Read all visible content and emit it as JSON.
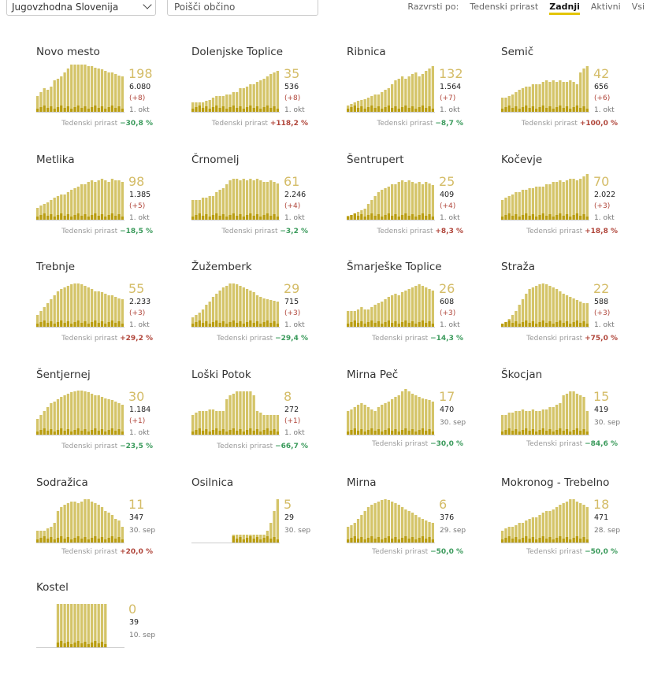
{
  "controls": {
    "region": "Jugovzhodna Slovenija",
    "search_placeholder": "Poišči občino",
    "sort_label": "Razvrsti po:",
    "sort_options": [
      "Tedenski prirast",
      "Zadnji",
      "Aktivni",
      "Vsi"
    ],
    "sort_active": "Zadnji"
  },
  "growth_label": "Tedenski prirast",
  "colors": {
    "bar": "#d4c468",
    "bar_dark": "#b99d10",
    "growth_pos": "#b0453a",
    "growth_neg": "#3a9a5b",
    "accent": "#e3c400"
  },
  "municipalities": [
    {
      "name": "Novo mesto",
      "active": "198",
      "total": "6.080",
      "delta": "(+8)",
      "date": "1. okt",
      "growth": "−30,8 %",
      "trend": "neg",
      "bars": [
        20,
        25,
        30,
        28,
        32,
        40,
        42,
        45,
        50,
        55,
        60,
        62,
        62,
        60,
        60,
        58,
        58,
        56,
        55,
        54,
        52,
        50,
        50,
        48,
        46,
        45
      ]
    },
    {
      "name": "Dolenjske Toplice",
      "active": "35",
      "total": "536",
      "delta": "(+8)",
      "date": "1. okt",
      "growth": "+118,2 %",
      "trend": "pos",
      "bars": [
        12,
        12,
        12,
        12,
        14,
        15,
        18,
        20,
        20,
        20,
        22,
        22,
        25,
        25,
        30,
        30,
        32,
        35,
        35,
        38,
        40,
        42,
        45,
        48,
        50,
        52
      ]
    },
    {
      "name": "Ribnica",
      "active": "132",
      "total": "1.564",
      "delta": "(+7)",
      "date": "1. okt",
      "growth": "−8,7 %",
      "trend": "neg",
      "bars": [
        8,
        10,
        12,
        14,
        15,
        16,
        18,
        20,
        22,
        22,
        25,
        28,
        30,
        35,
        40,
        42,
        45,
        42,
        45,
        48,
        50,
        45,
        48,
        52,
        55,
        58
      ]
    },
    {
      "name": "Semič",
      "active": "42",
      "total": "656",
      "delta": "(+6)",
      "date": "1. okt",
      "growth": "+100,0 %",
      "trend": "pos",
      "bars": [
        18,
        18,
        20,
        22,
        25,
        28,
        30,
        32,
        32,
        35,
        35,
        35,
        38,
        40,
        38,
        40,
        38,
        40,
        38,
        38,
        40,
        38,
        35,
        50,
        55,
        58
      ]
    },
    {
      "name": "Metlika",
      "active": "98",
      "total": "1.385",
      "delta": "(+5)",
      "date": "1. okt",
      "growth": "−18,5 %",
      "trend": "neg",
      "bars": [
        15,
        18,
        20,
        22,
        25,
        28,
        30,
        32,
        32,
        35,
        38,
        40,
        42,
        45,
        45,
        48,
        50,
        48,
        50,
        52,
        50,
        48,
        52,
        50,
        50,
        48
      ]
    },
    {
      "name": "Črnomelj",
      "active": "61",
      "total": "2.246",
      "delta": "(+4)",
      "date": "1. okt",
      "growth": "−3,2 %",
      "trend": "neg",
      "bars": [
        25,
        25,
        25,
        28,
        28,
        30,
        30,
        35,
        38,
        40,
        45,
        50,
        52,
        52,
        50,
        52,
        50,
        52,
        50,
        52,
        50,
        48,
        48,
        50,
        48,
        46
      ]
    },
    {
      "name": "Šentrupert",
      "active": "25",
      "total": "409",
      "delta": "(+4)",
      "date": "1. okt",
      "growth": "+8,3 %",
      "trend": "pos",
      "bars": [
        5,
        6,
        8,
        10,
        12,
        14,
        20,
        25,
        30,
        35,
        38,
        40,
        42,
        45,
        45,
        48,
        50,
        48,
        50,
        48,
        46,
        48,
        45,
        48,
        46,
        44
      ]
    },
    {
      "name": "Kočevje",
      "active": "70",
      "total": "2.022",
      "delta": "(+3)",
      "date": "1. okt",
      "growth": "+18,8 %",
      "trend": "pos",
      "bars": [
        25,
        28,
        30,
        32,
        35,
        35,
        38,
        38,
        40,
        40,
        42,
        42,
        42,
        45,
        45,
        48,
        48,
        50,
        48,
        50,
        52,
        52,
        50,
        52,
        55,
        58
      ]
    },
    {
      "name": "Trebnje",
      "active": "55",
      "total": "2.233",
      "delta": "(+3)",
      "date": "1. okt",
      "growth": "+29,2 %",
      "trend": "pos",
      "bars": [
        15,
        20,
        25,
        30,
        35,
        40,
        45,
        48,
        50,
        52,
        54,
        55,
        55,
        54,
        52,
        50,
        48,
        45,
        45,
        44,
        42,
        40,
        40,
        38,
        36,
        35
      ]
    },
    {
      "name": "Žužemberk",
      "active": "29",
      "total": "715",
      "delta": "(+3)",
      "date": "1. okt",
      "growth": "−29,4 %",
      "trend": "neg",
      "bars": [
        12,
        15,
        18,
        22,
        28,
        32,
        38,
        42,
        46,
        50,
        52,
        55,
        55,
        54,
        52,
        50,
        48,
        46,
        44,
        40,
        38,
        36,
        35,
        34,
        33,
        32
      ]
    },
    {
      "name": "Šmarješke Toplice",
      "active": "26",
      "total": "608",
      "delta": "(+3)",
      "date": "1. okt",
      "growth": "−14,3 %",
      "trend": "neg",
      "bars": [
        20,
        20,
        20,
        22,
        25,
        22,
        22,
        25,
        28,
        30,
        32,
        35,
        38,
        40,
        42,
        40,
        44,
        46,
        48,
        50,
        52,
        54,
        52,
        50,
        48,
        46
      ]
    },
    {
      "name": "Straža",
      "active": "22",
      "total": "588",
      "delta": "(+3)",
      "date": "1. okt",
      "growth": "+75,0 %",
      "trend": "pos",
      "bars": [
        4,
        6,
        10,
        15,
        20,
        28,
        35,
        42,
        48,
        50,
        52,
        54,
        55,
        54,
        52,
        50,
        48,
        45,
        42,
        40,
        38,
        36,
        34,
        32,
        30,
        30
      ]
    },
    {
      "name": "Šentjernej",
      "active": "30",
      "total": "1.184",
      "delta": "(+1)",
      "date": "1. okt",
      "growth": "−23,5 %",
      "trend": "neg",
      "bars": [
        20,
        25,
        30,
        35,
        40,
        42,
        45,
        48,
        50,
        52,
        54,
        55,
        56,
        56,
        55,
        54,
        52,
        50,
        50,
        48,
        46,
        45,
        44,
        42,
        40,
        38
      ]
    },
    {
      "name": "Loški Potok",
      "active": "8",
      "total": "272",
      "delta": "(+1)",
      "date": "1. okt",
      "growth": "−66,7 %",
      "trend": "neg",
      "bars": [
        25,
        28,
        30,
        30,
        30,
        32,
        32,
        30,
        30,
        30,
        45,
        50,
        52,
        55,
        55,
        55,
        55,
        55,
        50,
        30,
        28,
        25,
        25,
        25,
        25,
        25
      ]
    },
    {
      "name": "Mirna Peč",
      "active": "17",
      "total": "470",
      "delta": "",
      "date": "30. sep",
      "growth": "−30,0 %",
      "trend": "neg",
      "bars": [
        30,
        32,
        35,
        38,
        40,
        38,
        35,
        32,
        30,
        35,
        38,
        40,
        42,
        45,
        48,
        50,
        55,
        58,
        55,
        52,
        50,
        48,
        46,
        45,
        44,
        42
      ]
    },
    {
      "name": "Škocjan",
      "active": "15",
      "total": "419",
      "delta": "",
      "date": "30. sep",
      "growth": "−84,6 %",
      "trend": "neg",
      "bars": [
        25,
        25,
        28,
        28,
        30,
        30,
        32,
        30,
        30,
        32,
        30,
        30,
        32,
        32,
        35,
        35,
        38,
        40,
        50,
        52,
        55,
        55,
        52,
        50,
        48,
        30
      ]
    },
    {
      "name": "Sodražica",
      "active": "11",
      "total": "347",
      "delta": "",
      "date": "30. sep",
      "growth": "+20,0 %",
      "trend": "pos",
      "bars": [
        15,
        15,
        15,
        18,
        20,
        25,
        40,
        45,
        48,
        50,
        52,
        52,
        50,
        52,
        55,
        55,
        52,
        50,
        48,
        45,
        40,
        38,
        35,
        30,
        28,
        20
      ]
    },
    {
      "name": "Osilnica",
      "active": "5",
      "total": "29",
      "delta": "",
      "date": "30. sep",
      "growth": "",
      "trend": "none",
      "bars": [
        0,
        0,
        0,
        0,
        0,
        0,
        0,
        0,
        0,
        0,
        0,
        0,
        10,
        10,
        10,
        10,
        10,
        10,
        10,
        10,
        10,
        10,
        15,
        25,
        40,
        55
      ]
    },
    {
      "name": "Mirna",
      "active": "6",
      "total": "376",
      "delta": "",
      "date": "29. sep",
      "growth": "−50,0 %",
      "trend": "neg",
      "bars": [
        20,
        22,
        25,
        30,
        35,
        40,
        45,
        48,
        50,
        52,
        54,
        55,
        54,
        52,
        50,
        48,
        45,
        42,
        40,
        38,
        35,
        32,
        30,
        28,
        26,
        25
      ]
    },
    {
      "name": "Mokronog - Trebelno",
      "active": "18",
      "total": "471",
      "delta": "",
      "date": "28. sep",
      "growth": "−50,0 %",
      "trend": "neg",
      "bars": [
        15,
        18,
        20,
        20,
        22,
        25,
        25,
        28,
        30,
        32,
        32,
        35,
        38,
        40,
        40,
        42,
        45,
        48,
        50,
        52,
        55,
        55,
        52,
        50,
        48,
        45
      ]
    },
    {
      "name": "Kostel",
      "active": "0",
      "total": "39",
      "delta": "",
      "date": "10. sep",
      "growth": "",
      "trend": "none",
      "bars": [
        0,
        0,
        0,
        0,
        0,
        0,
        55,
        55,
        55,
        55,
        55,
        55,
        55,
        55,
        55,
        55,
        55,
        55,
        55,
        55,
        55,
        0,
        0,
        0,
        0,
        0
      ]
    }
  ]
}
